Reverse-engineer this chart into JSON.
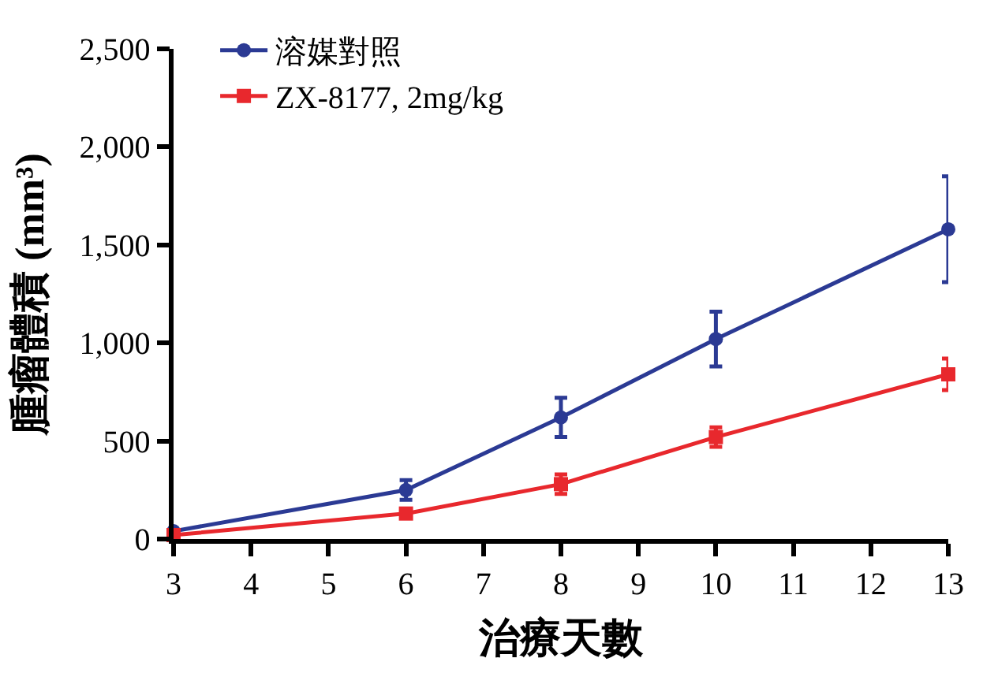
{
  "chart_data": {
    "type": "line",
    "xlabel": "治療天數",
    "ylabel": "腫瘤體積 (mm³)",
    "x": [
      3,
      6,
      8,
      10,
      13
    ],
    "series": [
      {
        "name": "溶媒對照",
        "color": "#2b3a94",
        "marker": "circle",
        "values": [
          40,
          250,
          620,
          1020,
          1580
        ],
        "errors": [
          null,
          50,
          100,
          140,
          270
        ]
      },
      {
        "name": "ZX-8177, 2mg/kg",
        "color": "#e8282d",
        "marker": "square",
        "values": [
          20,
          130,
          280,
          520,
          840
        ],
        "errors": [
          null,
          null,
          50,
          50,
          80
        ]
      }
    ],
    "xlim": [
      3,
      13
    ],
    "xticks": [
      3,
      4,
      5,
      6,
      7,
      8,
      9,
      10,
      11,
      12,
      13
    ],
    "ylim": [
      0,
      2500
    ],
    "yticks": [
      {
        "value": 0,
        "label": "0"
      },
      {
        "value": 500,
        "label": "500"
      },
      {
        "value": 1000,
        "label": "1,000"
      },
      {
        "value": 1500,
        "label": "1,500"
      },
      {
        "value": 2000,
        "label": "2,000"
      },
      {
        "value": 2500,
        "label": "2,500"
      }
    ],
    "legend": "top left",
    "line_style": "solid"
  }
}
